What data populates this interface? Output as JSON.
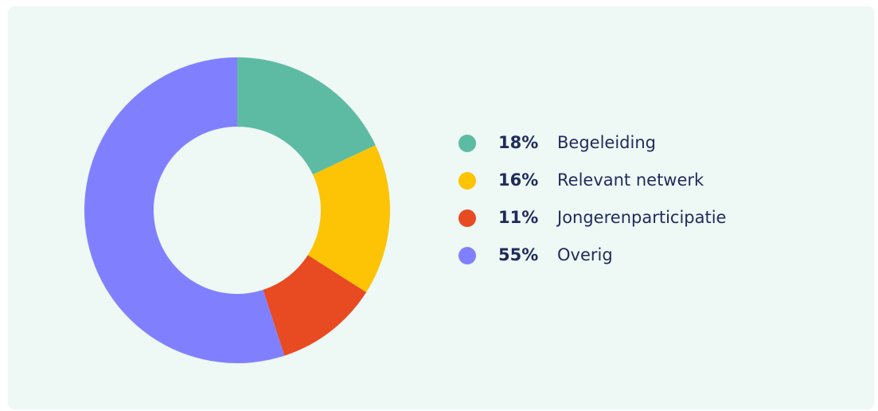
{
  "chart_data": {
    "type": "pie",
    "donut": true,
    "categories": [
      "Begeleiding",
      "Relevant netwerk",
      "Jongerenparticipatie",
      "Overig"
    ],
    "values": [
      18,
      16,
      11,
      55
    ],
    "value_labels": [
      "18%",
      "16%",
      "11%",
      "55%"
    ],
    "colors": [
      "#5dbba3",
      "#fcc405",
      "#e84a22",
      "#8080ff"
    ]
  }
}
